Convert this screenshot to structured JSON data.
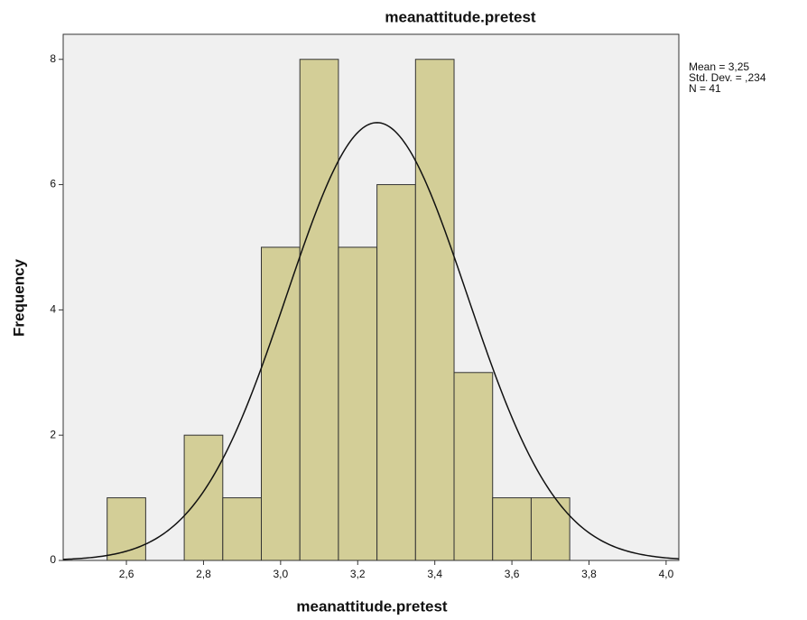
{
  "chart_data": {
    "type": "histogram",
    "title": "meanattitude.pretest",
    "x_label": "meanattitude.pretest",
    "y_label": "Frequency",
    "bins": [
      2.55,
      2.65,
      2.75,
      2.85,
      2.95,
      3.05,
      3.15,
      3.25,
      3.35,
      3.45,
      3.55,
      3.65,
      3.75
    ],
    "counts": [
      1,
      0,
      2,
      1,
      5,
      8,
      5,
      6,
      8,
      3,
      1,
      1
    ],
    "color": "#d3ce97",
    "edge_color": "#333333",
    "xlim": [
      2.436,
      4.033
    ],
    "ylim": [
      0,
      8.4
    ],
    "xticks": [
      {
        "value": 2.6,
        "label": "2,6"
      },
      {
        "value": 2.8,
        "label": "2,8"
      },
      {
        "value": 3.0,
        "label": "3,0"
      },
      {
        "value": 3.2,
        "label": "3,2"
      },
      {
        "value": 3.4,
        "label": "3,4"
      },
      {
        "value": 3.6,
        "label": "3,6"
      },
      {
        "value": 3.8,
        "label": "3,8"
      },
      {
        "value": 4.0,
        "label": "4,0"
      }
    ],
    "yticks": [
      0,
      2,
      4,
      6,
      8
    ],
    "stats": [
      {
        "value": 3.25,
        "label": "Mean = 3,25"
      },
      {
        "value": 0.234,
        "label": "Std. Dev. = ,234"
      },
      {
        "value": 41,
        "label": "N = 41"
      }
    ],
    "grid": false
  }
}
